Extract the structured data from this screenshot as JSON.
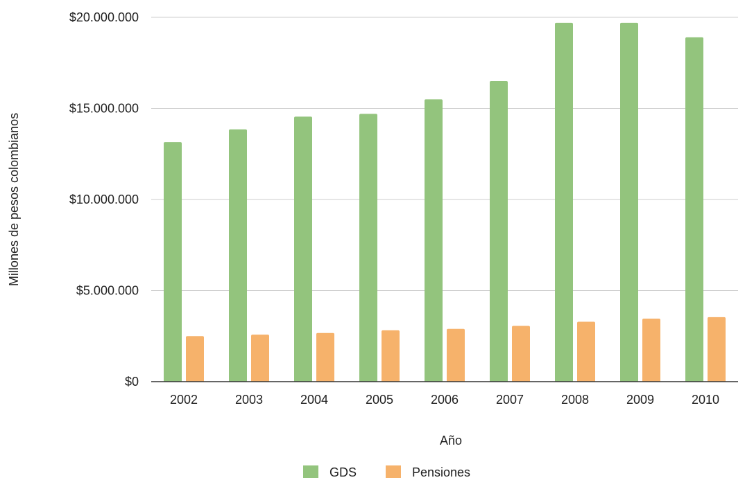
{
  "chart_data": {
    "type": "bar",
    "categories": [
      "2002",
      "2003",
      "2004",
      "2005",
      "2006",
      "2007",
      "2008",
      "2009",
      "2010"
    ],
    "series": [
      {
        "name": "GDS",
        "color": "#93c47d",
        "values": [
          13150000,
          13850000,
          14550000,
          14700000,
          15500000,
          16500000,
          19700000,
          19700000,
          18900000
        ]
      },
      {
        "name": "Pensiones",
        "color": "#f6b26b",
        "values": [
          2500000,
          2580000,
          2670000,
          2820000,
          2900000,
          3060000,
          3290000,
          3460000,
          3540000
        ]
      }
    ],
    "yticks": [
      {
        "value": 0,
        "label": "$0"
      },
      {
        "value": 5000000,
        "label": "$5.000.000"
      },
      {
        "value": 10000000,
        "label": "$10.000.000"
      },
      {
        "value": 15000000,
        "label": "$15.000.000"
      },
      {
        "value": 20000000,
        "label": "$20.000.000"
      }
    ],
    "xlabel": "Año",
    "ylabel": "Millones de pesos colombianos",
    "ylim": [
      0,
      20000000
    ],
    "grid": true,
    "legend_position": "bottom"
  }
}
